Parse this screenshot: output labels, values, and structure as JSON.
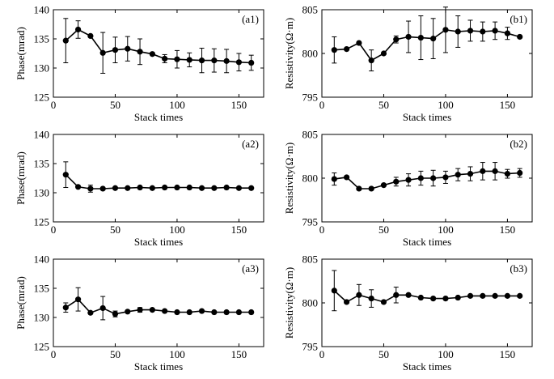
{
  "figure": {
    "description_free": true
  },
  "chart_data": [
    {
      "type": "scatter",
      "panel_label": "(a1)",
      "xlabel": "Stack times",
      "ylabel": "Phase(mrad)",
      "xlim": [
        0,
        170
      ],
      "ylim": [
        125,
        140
      ],
      "xticks": [
        0,
        50,
        100,
        150
      ],
      "yticks": [
        125,
        130,
        135,
        140
      ],
      "grid": false,
      "x": [
        10,
        20,
        30,
        40,
        50,
        60,
        70,
        80,
        90,
        100,
        110,
        120,
        130,
        140,
        150,
        160
      ],
      "y": [
        134.7,
        136.6,
        135.5,
        132.6,
        133.1,
        133.3,
        132.8,
        132.4,
        131.6,
        131.5,
        131.4,
        131.3,
        131.3,
        131.2,
        131.0,
        130.9
      ],
      "err": [
        3.8,
        1.5,
        0,
        3.5,
        2.2,
        2.1,
        2.2,
        0,
        0.7,
        1.5,
        1.2,
        2.1,
        2.0,
        2.0,
        1.5,
        1.3
      ]
    },
    {
      "type": "scatter",
      "panel_label": "(b1)",
      "xlabel": "Stack times",
      "ylabel": "Resistivity(Ω·m)",
      "xlim": [
        0,
        170
      ],
      "ylim": [
        795,
        805
      ],
      "xticks": [
        0,
        50,
        100,
        150
      ],
      "yticks": [
        795,
        800,
        805
      ],
      "grid": false,
      "x": [
        10,
        20,
        30,
        40,
        50,
        60,
        70,
        80,
        90,
        100,
        110,
        120,
        130,
        140,
        150,
        160
      ],
      "y": [
        800.4,
        800.5,
        801.2,
        799.2,
        800.0,
        801.6,
        801.9,
        801.8,
        801.7,
        802.7,
        802.5,
        802.6,
        802.5,
        802.6,
        802.3,
        801.9
      ],
      "err": [
        1.5,
        0,
        0,
        1.2,
        0,
        0.4,
        1.8,
        2.5,
        2.3,
        2.6,
        1.8,
        1.2,
        1.1,
        1.0,
        0.7,
        0
      ]
    },
    {
      "type": "scatter",
      "panel_label": "(a2)",
      "xlabel": "Stack times",
      "ylabel": "Phase(mrad)",
      "xlim": [
        0,
        170
      ],
      "ylim": [
        125,
        140
      ],
      "xticks": [
        0,
        50,
        100,
        150
      ],
      "yticks": [
        125,
        130,
        135,
        140
      ],
      "grid": false,
      "x": [
        10,
        20,
        30,
        40,
        50,
        60,
        70,
        80,
        90,
        100,
        110,
        120,
        130,
        140,
        150,
        160
      ],
      "y": [
        133.1,
        131.0,
        130.7,
        130.7,
        130.8,
        130.8,
        130.9,
        130.8,
        130.9,
        130.9,
        130.9,
        130.8,
        130.8,
        130.9,
        130.8,
        130.8
      ],
      "err": [
        2.2,
        0,
        0.6,
        0,
        0,
        0,
        0,
        0,
        0,
        0,
        0,
        0,
        0,
        0,
        0,
        0
      ]
    },
    {
      "type": "scatter",
      "panel_label": "(b2)",
      "xlabel": "Stack times",
      "ylabel": "Resistivity(Ω·m)",
      "xlim": [
        0,
        170
      ],
      "ylim": [
        795,
        805
      ],
      "xticks": [
        0,
        50,
        100,
        150
      ],
      "yticks": [
        795,
        800,
        805
      ],
      "grid": false,
      "x": [
        10,
        20,
        30,
        40,
        50,
        60,
        70,
        80,
        90,
        100,
        110,
        120,
        130,
        140,
        150,
        160
      ],
      "y": [
        799.9,
        800.1,
        798.8,
        798.8,
        799.2,
        799.6,
        799.8,
        800.0,
        800.0,
        800.1,
        800.4,
        800.5,
        800.8,
        800.8,
        800.5,
        800.6
      ],
      "err": [
        0.7,
        0,
        0,
        0,
        0,
        0.5,
        0.7,
        0.8,
        0.9,
        0.7,
        0.7,
        0.8,
        1.0,
        1.0,
        0.5,
        0.5
      ]
    },
    {
      "type": "scatter",
      "panel_label": "(a3)",
      "xlabel": "Stack times",
      "ylabel": "Phase(mrad)",
      "xlim": [
        0,
        170
      ],
      "ylim": [
        125,
        140
      ],
      "xticks": [
        0,
        50,
        100,
        150
      ],
      "yticks": [
        125,
        130,
        135,
        140
      ],
      "grid": false,
      "x": [
        10,
        20,
        30,
        40,
        50,
        60,
        70,
        80,
        90,
        100,
        110,
        120,
        130,
        140,
        150,
        160
      ],
      "y": [
        131.7,
        133.1,
        130.8,
        131.6,
        130.6,
        131.0,
        131.3,
        131.3,
        131.1,
        130.9,
        130.9,
        131.1,
        130.9,
        130.9,
        130.9,
        130.9
      ],
      "err": [
        0.8,
        2.0,
        0,
        2.0,
        0.5,
        0,
        0.4,
        0,
        0,
        0,
        0,
        0,
        0,
        0,
        0,
        0
      ]
    },
    {
      "type": "scatter",
      "panel_label": "(b3)",
      "xlabel": "Stack times",
      "ylabel": "Resistivity(Ω·m)",
      "xlim": [
        0,
        170
      ],
      "ylim": [
        795,
        805
      ],
      "xticks": [
        0,
        50,
        100,
        150
      ],
      "yticks": [
        795,
        800,
        805
      ],
      "grid": false,
      "x": [
        10,
        20,
        30,
        40,
        50,
        60,
        70,
        80,
        90,
        100,
        110,
        120,
        130,
        140,
        150,
        160
      ],
      "y": [
        801.4,
        800.1,
        800.9,
        800.5,
        800.1,
        800.9,
        800.9,
        800.6,
        800.5,
        800.5,
        800.6,
        800.8,
        800.8,
        800.8,
        800.8,
        800.8
      ],
      "err": [
        2.3,
        0,
        1.2,
        1.0,
        0,
        0.9,
        0,
        0,
        0,
        0,
        0,
        0,
        0,
        0,
        0,
        0
      ]
    }
  ]
}
